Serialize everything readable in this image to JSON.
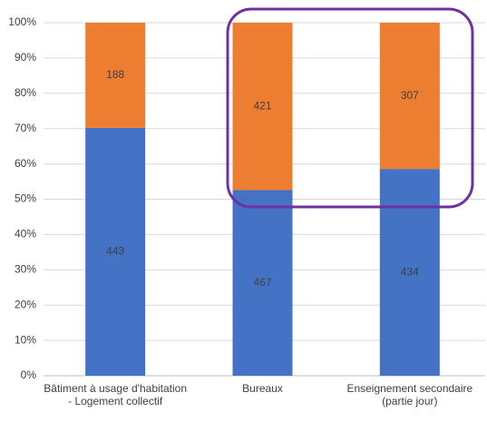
{
  "chart_data": {
    "type": "bar",
    "stacking": "percent",
    "categories": [
      "Bâtiment à usage d'habitation - Logement collectif",
      "Bureaux",
      "Enseignement secondaire (partie jour)"
    ],
    "series": [
      {
        "color": "#4472c4",
        "values": [
          443,
          467,
          434
        ]
      },
      {
        "color": "#ed7d31",
        "values": [
          188,
          421,
          307
        ]
      }
    ],
    "ylim": [
      0,
      100
    ],
    "yticks": [
      {
        "value": 0,
        "label": "0%"
      },
      {
        "value": 10,
        "label": "10%"
      },
      {
        "value": 20,
        "label": "20%"
      },
      {
        "value": 30,
        "label": "30%"
      },
      {
        "value": 40,
        "label": "40%"
      },
      {
        "value": 50,
        "label": "50%"
      },
      {
        "value": 60,
        "label": "60%"
      },
      {
        "value": 70,
        "label": "70%"
      },
      {
        "value": 80,
        "label": "80%"
      },
      {
        "value": 90,
        "label": "90%"
      },
      {
        "value": 100,
        "label": "100%"
      }
    ],
    "grid": true
  }
}
